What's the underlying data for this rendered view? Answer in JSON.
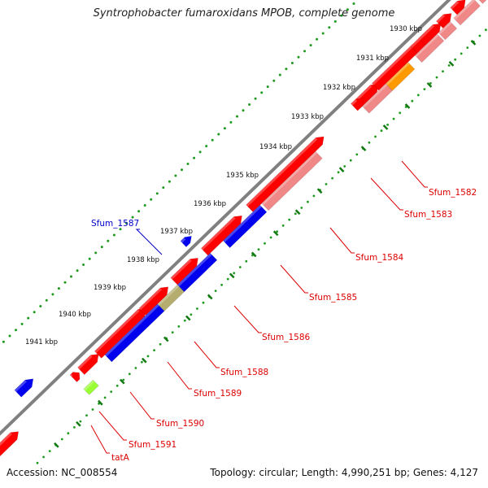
{
  "title": "Syntrophobacter fumaroxidans MPOB, complete genome",
  "footer": {
    "accession": "Accession: NC_008554",
    "stats": "Topology: circular; Length: 4,990,251 bp; Genes: 4,127"
  },
  "colors": {
    "backbone": "#808080",
    "tick_dots": "#1f9a1f",
    "forward_cds": "#ff0000",
    "reverse_cds": "#0000ee",
    "pseudo_light": "#f08888",
    "orange_cds": "#ff9900",
    "olive_cds": "#b4ad6e",
    "lime_cds": "#99ff33",
    "label_red": "#dd0000",
    "label_blue": "#0000cc"
  },
  "scale_labels": [
    "1930 kbp",
    "1931 kbp",
    "1932 kbp",
    "1933 kbp",
    "1934 kbp",
    "1935 kbp",
    "1936 kbp",
    "1937 kbp",
    "1938 kbp",
    "1939 kbp",
    "1940 kbp",
    "1941 kbp"
  ],
  "gene_labels": [
    "Sfum_1582",
    "Sfum_1583",
    "Sfum_1584",
    "Sfum_1585",
    "Sfum_1586",
    "Sfum_1587",
    "Sfum_1588",
    "Sfum_1589",
    "Sfum_1590",
    "Sfum_1591",
    "tatA"
  ]
}
